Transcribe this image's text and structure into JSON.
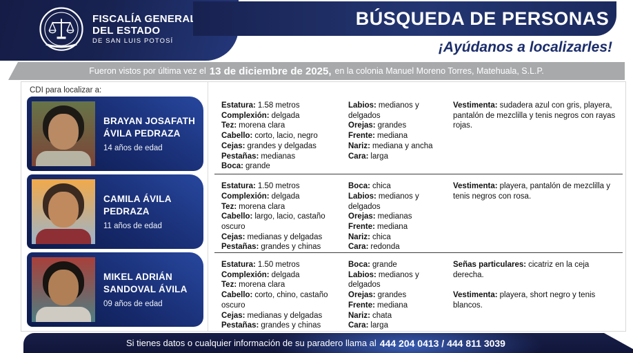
{
  "colors": {
    "navy_dark": "#10173c",
    "navy_mid": "#1c2a5e",
    "navy_light": "#2a4fa5",
    "card_gradient_light": "#27479e",
    "card_gradient_dark": "#0c1a4b",
    "subtitle_blue": "#1b2d6b",
    "datebar_gray": "#a7a9ab",
    "footer_glow": "#3f68c6"
  },
  "header": {
    "agency_line1": "FISCALÍA GENERAL",
    "agency_line2": "DEL ESTADO",
    "agency_line3": "DE SAN LUIS POTOSÍ",
    "title": "BÚSQUEDA DE PERSONAS",
    "subtitle": "¡Ayúdanos a localizarles!"
  },
  "date_bar": {
    "prefix": "Fueron vistos por última vez el",
    "date": "13 de diciembre de 2025,",
    "suffix": "en la colonia Manuel Moreno Torres, Matehuala, S.L.P."
  },
  "sidebar": {
    "label": "CDI para localizar a:"
  },
  "persons": [
    {
      "name": "BRAYAN JOSAFATH ÁVILA PEDRAZA",
      "age": "14 años de edad",
      "photo": {
        "bg_top": "#667449",
        "bg_bottom": "#7c4436",
        "hair": "#1d1a16",
        "skin": "#b98a63",
        "shirt": "#b6b3a2"
      },
      "columns": [
        [
          {
            "label": "Estatura:",
            "value": "1.58 metros"
          },
          {
            "label": "Complexión:",
            "value": "delgada"
          },
          {
            "label": "Tez:",
            "value": "morena clara"
          },
          {
            "label": "Cabello:",
            "value": "corto, lacio, negro"
          },
          {
            "label": "Cejas:",
            "value": "grandes y delgadas"
          },
          {
            "label": "Pestañas:",
            "value": "medianas"
          },
          {
            "label": "Boca:",
            "value": "grande"
          }
        ],
        [
          {
            "label": "Labios:",
            "value": "medianos y delgados"
          },
          {
            "label": "Orejas:",
            "value": "grandes"
          },
          {
            "label": "Frente:",
            "value": "mediana"
          },
          {
            "label": "Nariz:",
            "value": "mediana y ancha"
          },
          {
            "label": "Cara:",
            "value": "larga"
          }
        ],
        [
          {
            "label": "Vestimenta:",
            "value": "sudadera azul con gris, playera, pantalón de mezclilla y tenis negros con rayas rojas."
          }
        ]
      ]
    },
    {
      "name": "CAMILA ÁVILA PEDRAZA",
      "age": "11 años de edad",
      "photo": {
        "bg_top": "#f0a94a",
        "bg_bottom": "#9db4c9",
        "hair": "#3a2a20",
        "skin": "#c08a5e",
        "shirt": "#8e2f35"
      },
      "columns": [
        [
          {
            "label": "Estatura:",
            "value": "1.50 metros"
          },
          {
            "label": "Complexión:",
            "value": "delgada"
          },
          {
            "label": "Tez:",
            "value": "morena clara"
          },
          {
            "label": "Cabello:",
            "value": "largo, lacio, castaño oscuro"
          },
          {
            "label": "Cejas:",
            "value": "medianas y delgadas"
          },
          {
            "label": "Pestañas:",
            "value": "grandes y chinas"
          }
        ],
        [
          {
            "label": "Boca:",
            "value": "chica"
          },
          {
            "label": "Labios:",
            "value": "medianos y delgados"
          },
          {
            "label": "Orejas:",
            "value": "medianas"
          },
          {
            "label": "Frente:",
            "value": "mediana"
          },
          {
            "label": "Nariz:",
            "value": "chica"
          },
          {
            "label": "Cara:",
            "value": "redonda"
          }
        ],
        [
          {
            "label": "Vestimenta:",
            "value": "playera, pantalón de mezclilla y tenis negros con rosa."
          }
        ]
      ]
    },
    {
      "name": "MIKEL ADRIÁN SANDOVAL ÁVILA",
      "age": "09 años de edad",
      "photo": {
        "bg_top": "#a8403a",
        "bg_bottom": "#4f7e83",
        "hair": "#171411",
        "skin": "#b07f56",
        "shirt": "#cfcac2"
      },
      "columns": [
        [
          {
            "label": "Estatura:",
            "value": "1.50 metros"
          },
          {
            "label": "Complexión:",
            "value": "delgada"
          },
          {
            "label": "Tez:",
            "value": "morena clara"
          },
          {
            "label": "Cabello:",
            "value": "corto, chino, castaño oscuro"
          },
          {
            "label": "Cejas:",
            "value": "medianas y delgadas"
          },
          {
            "label": "Pestañas:",
            "value": "grandes y chinas"
          }
        ],
        [
          {
            "label": "Boca:",
            "value": "grande"
          },
          {
            "label": "Labios:",
            "value": "medianos y delgados"
          },
          {
            "label": "Orejas:",
            "value": "grandes"
          },
          {
            "label": "Frente:",
            "value": "mediana"
          },
          {
            "label": "Nariz:",
            "value": "chata"
          },
          {
            "label": "Cara:",
            "value": "larga"
          }
        ],
        [
          {
            "label": "Señas particulares:",
            "value": "cicatriz en la ceja derecha."
          },
          {
            "label": "Vestimenta:",
            "value": "playera, short negro y tenis blancos."
          }
        ]
      ]
    }
  ],
  "footer": {
    "text": "Si tienes datos o cualquier información de su paradero llama al",
    "phones": "444 204 0413 / 444 811 3039"
  }
}
